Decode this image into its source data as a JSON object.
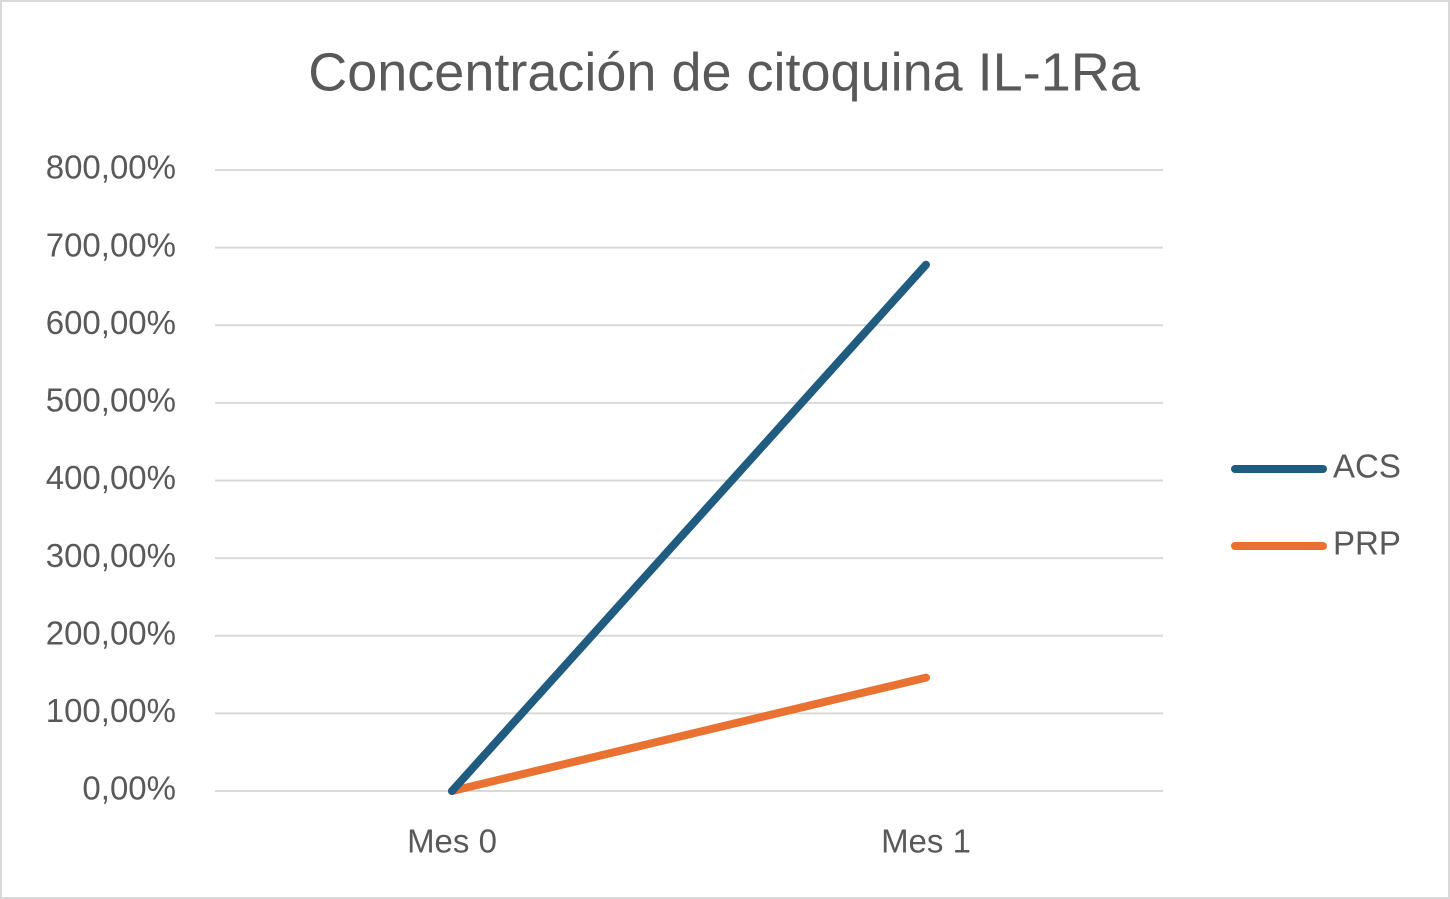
{
  "chart_data": {
    "type": "line",
    "title": "Concentración de citoquina IL-1Ra",
    "categories": [
      "Mes 0",
      "Mes 1"
    ],
    "series": [
      {
        "name": "ACS",
        "color": "#1f5c80",
        "values": [
          0,
          678
        ]
      },
      {
        "name": "PRP",
        "color": "#e97132",
        "values": [
          0,
          146
        ]
      }
    ],
    "ylim": [
      0,
      800
    ],
    "yticks": [
      {
        "value": 0,
        "label": "0,00%"
      },
      {
        "value": 100,
        "label": "100,00%"
      },
      {
        "value": 200,
        "label": "200,00%"
      },
      {
        "value": 300,
        "label": "300,00%"
      },
      {
        "value": 400,
        "label": "400,00%"
      },
      {
        "value": 500,
        "label": "500,00%"
      },
      {
        "value": 600,
        "label": "600,00%"
      },
      {
        "value": 700,
        "label": "700,00%"
      },
      {
        "value": 800,
        "label": "800,00%"
      }
    ],
    "grid": true,
    "legend": "right"
  }
}
